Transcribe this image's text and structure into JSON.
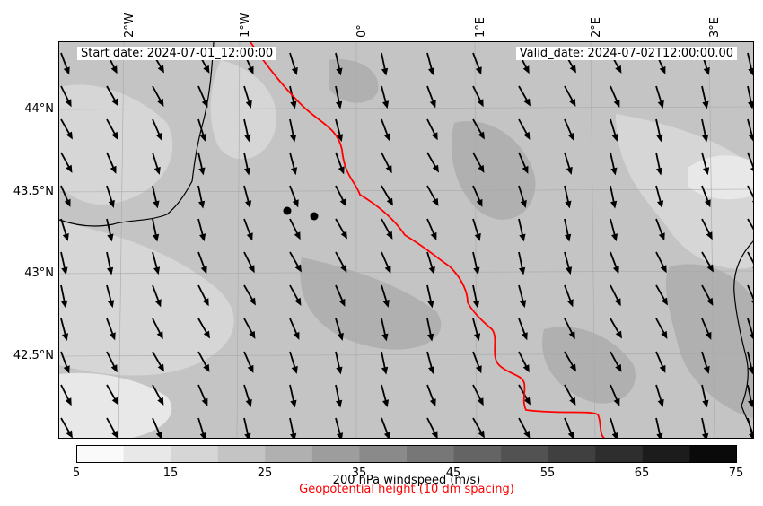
{
  "map": {
    "start_label": "Start date: 2024-07-01_12:00:00",
    "valid_label": "Valid_date: 2024-07-02T12:00:00.00",
    "lon_ticks": [
      "2°W",
      "1°W",
      "0°",
      "1°E",
      "2°E",
      "3°E"
    ],
    "lat_ticks": [
      "44°N",
      "43.5°N",
      "43°N",
      "42.5°N"
    ],
    "contour_color": "#ff0000",
    "coast_color": "#000000",
    "arrow_color": "#000000"
  },
  "colorbar": {
    "label": "200 hPa windspeed (m/s)",
    "ticks": [
      "5",
      "15",
      "25",
      "35",
      "45",
      "55",
      "65",
      "75"
    ],
    "min": 5,
    "max": 75,
    "step": 5,
    "colors": [
      "#fafafa",
      "#e8e8e8",
      "#d6d6d6",
      "#c4c4c4",
      "#b0b0b0",
      "#9d9d9d",
      "#8a8a8a",
      "#777777",
      "#646464",
      "#525252",
      "#404040",
      "#2e2e2e",
      "#1c1c1c",
      "#0a0a0a"
    ]
  },
  "geopotential_label": "Geopotential height (10 dm spacing)"
}
